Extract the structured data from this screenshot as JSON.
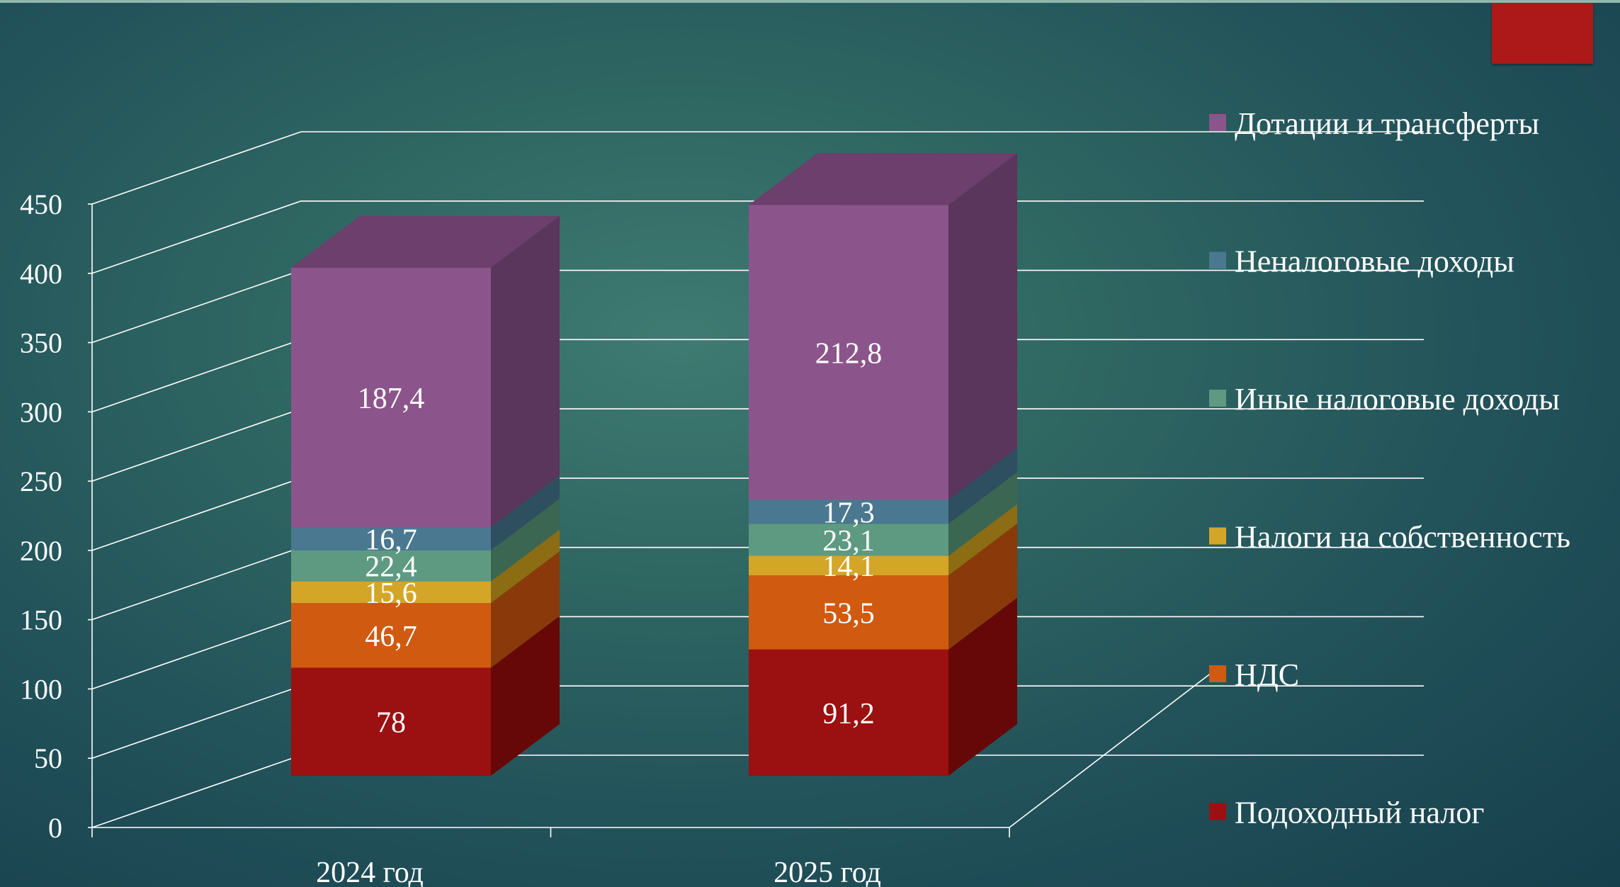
{
  "chart_data": {
    "type": "bar",
    "stacked": true,
    "three_d": true,
    "categories": [
      "2024 год",
      "2025 год"
    ],
    "series": [
      {
        "name": "Подоходный налог",
        "values": [
          78,
          91.2
        ],
        "labels": [
          "78",
          "91,2"
        ],
        "color": "#9b1010",
        "side": "#660808",
        "top": "#7a0c0c"
      },
      {
        "name": "НДС",
        "values": [
          46.7,
          53.5
        ],
        "labels": [
          "46,7",
          "53,5"
        ],
        "color": "#d05a10",
        "side": "#8a3a0a",
        "top": "#a9470c"
      },
      {
        "name": "Налоги на собственность",
        "values": [
          15.6,
          14.1
        ],
        "labels": [
          "15,6",
          "14,1"
        ],
        "color": "#d4a628",
        "side": "#8c6d14",
        "top": "#b08a1e"
      },
      {
        "name": "Иные налоговые доходы",
        "values": [
          22.4,
          23.1
        ],
        "labels": [
          "22,4",
          "23,1"
        ],
        "color": "#5e9a82",
        "side": "#3b6652",
        "top": "#4d8070"
      },
      {
        "name": "Неналоговые доходы",
        "values": [
          16.7,
          17.3
        ],
        "labels": [
          "16,7",
          "17,3"
        ],
        "color": "#4a7890",
        "side": "#2d4f60",
        "top": "#3a6274"
      },
      {
        "name": "Дотации и трансферты",
        "values": [
          187.4,
          212.8
        ],
        "labels": [
          "187,4",
          "212,8"
        ],
        "color": "#8b558b",
        "side": "#5a355c",
        "top": "#6c3f6c"
      }
    ],
    "legend_order": [
      "Дотации и трансферты",
      "Неналоговые доходы",
      "Иные налоговые доходы",
      "Налоги на собственность",
      "НДС",
      "Подоходный налог"
    ],
    "y_ticks": [
      "0",
      "50",
      "100",
      "150",
      "200",
      "250",
      "300",
      "350",
      "400",
      "450"
    ],
    "ylim": [
      0,
      450
    ],
    "legend_position": "right",
    "grid": true
  },
  "colors": {
    "accent_square": "#ad1818",
    "grid": "#ffffff",
    "background": "#2f6762"
  }
}
